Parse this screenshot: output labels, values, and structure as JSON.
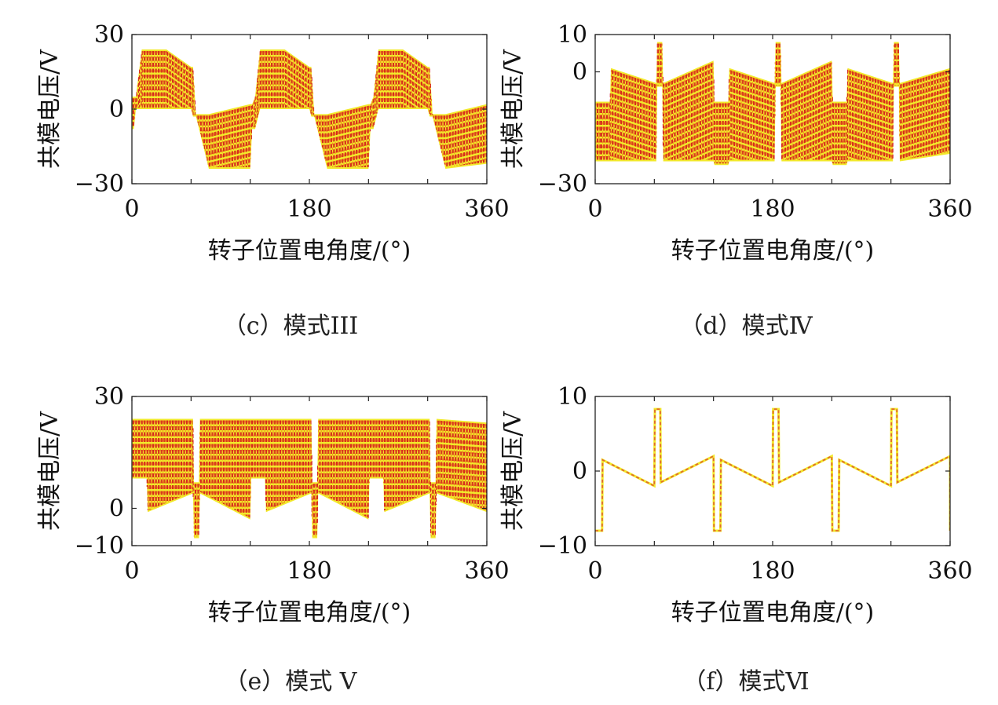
{
  "chart_data": [
    {
      "type": "line",
      "panel_id": "c",
      "caption": "（c）模式III",
      "xlabel": "转子位置电角度/(°)",
      "ylabel": "共模电压/V",
      "xlim": [
        0,
        360
      ],
      "ylim": [
        -30,
        30
      ],
      "xticks": [
        "0",
        "180",
        "360"
      ],
      "yticks": [
        "30",
        "0",
        "-30"
      ],
      "envelope": {
        "x": [
          0,
          2,
          4,
          10,
          35,
          60,
          62,
          65,
          78,
          120,
          122,
          125,
          130,
          155,
          180,
          182,
          185,
          198,
          240,
          242,
          245,
          250,
          275,
          300,
          302,
          305,
          318,
          360
        ],
        "upper": [
          5,
          5,
          5,
          24,
          24,
          17,
          17,
          -2,
          -2,
          2,
          2,
          5,
          24,
          24,
          17,
          17,
          -2,
          -2,
          2,
          2,
          5,
          24,
          24,
          17,
          17,
          -2,
          -2,
          2
        ],
        "lower": [
          -8,
          -8,
          0,
          0,
          0,
          0,
          -3,
          -3,
          -24,
          -24,
          -8,
          -8,
          0,
          0,
          0,
          -3,
          -3,
          -24,
          -24,
          -8,
          -8,
          0,
          0,
          0,
          -3,
          -3,
          -24,
          -22
        ]
      }
    },
    {
      "type": "line",
      "panel_id": "d",
      "caption": "（d）模式Ⅳ",
      "xlabel": "转子位置电角度/(°)",
      "ylabel": "共模电压/V",
      "xlim": [
        0,
        360
      ],
      "ylim": [
        -30,
        10
      ],
      "xticks": [
        "0",
        "180",
        "360"
      ],
      "yticks": [
        "10",
        "0",
        "-30"
      ],
      "envelope": {
        "x": [
          0,
          15,
          16,
          62,
          63,
          68,
          69,
          120,
          121,
          135,
          136,
          182,
          183,
          188,
          189,
          240,
          241,
          255,
          256,
          302,
          303,
          308,
          309,
          360
        ],
        "upper": [
          -8,
          -8,
          1,
          -3,
          8,
          8,
          -3,
          3,
          -8,
          -8,
          1,
          -3,
          8,
          8,
          -3,
          3,
          -8,
          -8,
          1,
          -3,
          8,
          8,
          -3,
          1
        ],
        "lower": [
          -24,
          -24,
          -24,
          -24,
          -4,
          -4,
          -24,
          -24,
          -25,
          -25,
          -24,
          -24,
          -4,
          -4,
          -24,
          -24,
          -25,
          -25,
          -24,
          -24,
          -4,
          -4,
          -24,
          -22
        ]
      }
    },
    {
      "type": "line",
      "panel_id": "e",
      "caption": "（e）模式 V",
      "xlabel": "转子位置电角度/(°)",
      "ylabel": "共模电压/V",
      "xlim": [
        0,
        360
      ],
      "ylim": [
        -10,
        30
      ],
      "xticks": [
        "0",
        "180",
        "360"
      ],
      "yticks": [
        "30",
        "0",
        "-10"
      ],
      "envelope": {
        "x": [
          0,
          15,
          16,
          62,
          63,
          68,
          69,
          120,
          121,
          135,
          136,
          182,
          183,
          188,
          189,
          240,
          241,
          255,
          256,
          302,
          303,
          308,
          309,
          360
        ],
        "upper": [
          24,
          24,
          24,
          24,
          7,
          7,
          24,
          24,
          24,
          24,
          24,
          24,
          7,
          7,
          24,
          24,
          24,
          24,
          24,
          24,
          7,
          7,
          24,
          23
        ],
        "lower": [
          8,
          8,
          -1,
          4,
          -8,
          -8,
          4,
          -3,
          8,
          8,
          -1,
          4,
          -8,
          -8,
          4,
          -3,
          8,
          8,
          -1,
          4,
          -8,
          -8,
          4,
          -1
        ]
      }
    },
    {
      "type": "line",
      "panel_id": "f",
      "caption": "（f）模式Ⅵ",
      "xlabel": "转子位置电角度/(°)",
      "ylabel": "共模电压/V",
      "xlim": [
        0,
        360
      ],
      "ylim": [
        -10,
        10
      ],
      "xticks": [
        "0",
        "180",
        "360"
      ],
      "yticks": [
        "10",
        "0",
        "-10"
      ],
      "series": [
        {
          "name": "common-mode voltage",
          "x": [
            0,
            7,
            7.5,
            60,
            60.5,
            66,
            66.5,
            120,
            120.5,
            127,
            127.5,
            180,
            180.5,
            186,
            186.5,
            240,
            240.5,
            247,
            247.5,
            300,
            300.5,
            306,
            306.5,
            360,
            360
          ],
          "y": [
            -8,
            -8,
            1.5,
            -2,
            8.3,
            8.3,
            -1.5,
            2,
            -8,
            -8,
            1.5,
            -2,
            8.3,
            8.3,
            -1.5,
            2,
            -8,
            -8,
            1.5,
            -2,
            8.3,
            8.3,
            -1.5,
            2,
            -8
          ]
        }
      ]
    }
  ],
  "colors": {
    "fill_red": "#d4161b",
    "fill_orange": "#f08a1c",
    "fill_yellow": "#f2ea2b",
    "line_dash": "#e06a2a"
  }
}
